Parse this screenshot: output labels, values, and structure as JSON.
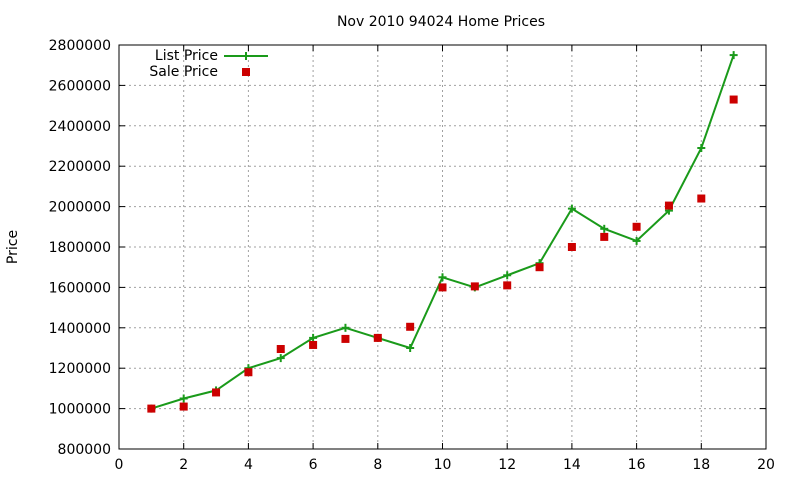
{
  "chart_data": {
    "type": "line",
    "title": "Nov 2010 94024 Home Prices",
    "xlabel": "",
    "ylabel": "Price",
    "xlim": [
      0,
      20
    ],
    "ylim": [
      800000,
      2800000
    ],
    "x_ticks": [
      "0",
      "2",
      "4",
      "6",
      "8",
      "10",
      "12",
      "14",
      "16",
      "18",
      "20"
    ],
    "y_ticks": [
      "800000",
      "1000000",
      "1200000",
      "1400000",
      "1600000",
      "1800000",
      "2000000",
      "2200000",
      "2400000",
      "2600000",
      "2800000"
    ],
    "grid": true,
    "legend": "top-left",
    "x": [
      1,
      2,
      3,
      4,
      5,
      6,
      7,
      8,
      9,
      10,
      11,
      12,
      13,
      14,
      15,
      16,
      17,
      18,
      19
    ],
    "series": [
      {
        "name": "List Price",
        "style": "line-with-plus-markers",
        "color": "#1a9a1a",
        "values": [
          1000000,
          1050000,
          1090000,
          1200000,
          1250000,
          1350000,
          1400000,
          1350000,
          1300000,
          1650000,
          1600000,
          1660000,
          1720000,
          1990000,
          1890000,
          1830000,
          1980000,
          2290000,
          2750000
        ]
      },
      {
        "name": "Sale Price",
        "style": "square-markers",
        "color": "#cc0000",
        "values": [
          1000000,
          1010000,
          1080000,
          1180000,
          1295000,
          1315000,
          1345000,
          1350000,
          1405000,
          1600000,
          1605000,
          1610000,
          1700000,
          1800000,
          1850000,
          1900000,
          2005000,
          2040000,
          2530000
        ]
      }
    ]
  }
}
